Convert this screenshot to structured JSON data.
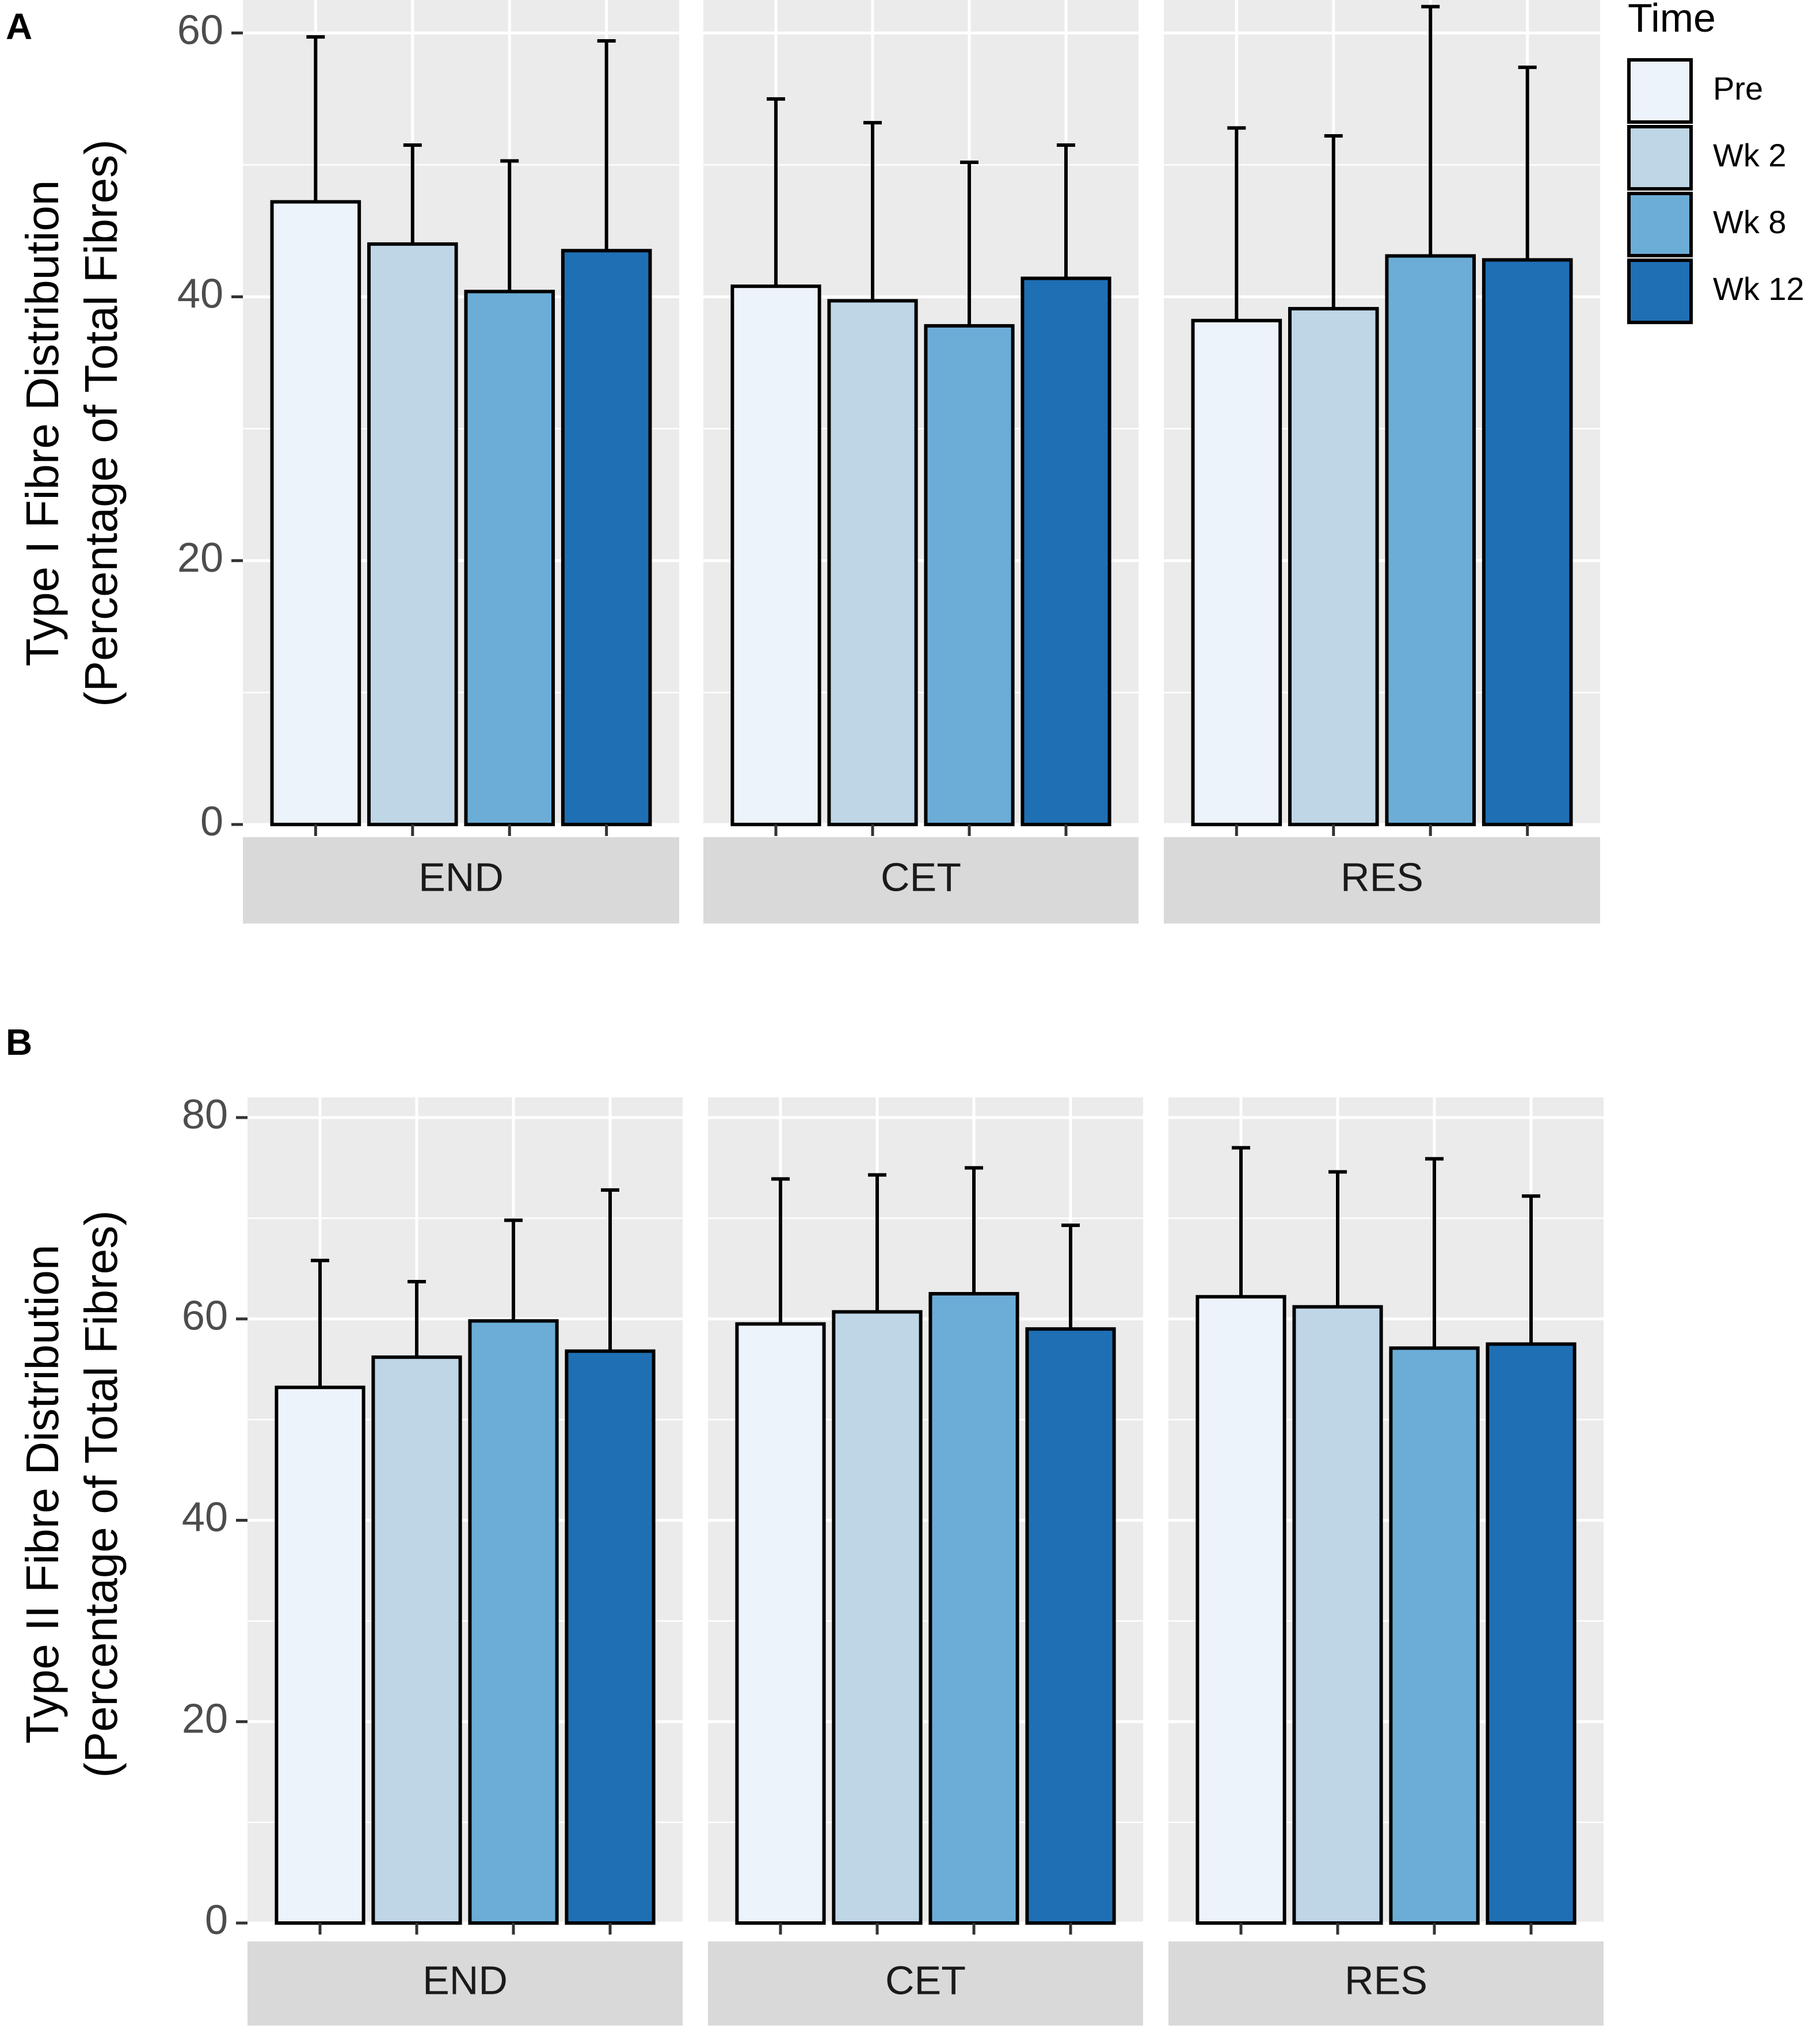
{
  "legend": {
    "title": "Time",
    "items": [
      "Pre",
      "Wk 2",
      "Wk 8",
      "Wk 12"
    ]
  },
  "colors": {
    "series": [
      "#edf3fb",
      "#bfd6e6",
      "#6cadd7",
      "#1f6fb4"
    ],
    "panel_bg": "#ebebeb",
    "grid": "#ffffff",
    "strip_bg": "#d9d9d9",
    "axis_text": "#4d4d4d",
    "strip_text": "#1a1a1a",
    "bar_outline": "#000000"
  },
  "chart_data": [
    {
      "type": "bar",
      "panel_label": "A",
      "ylabel": [
        "Type I Fibre Distribution",
        "(Percentage of Total Fibres)"
      ],
      "ylim": [
        0,
        62.5
      ],
      "yticks": [
        0,
        20,
        40,
        60
      ],
      "facets": [
        "END",
        "CET",
        "RES"
      ],
      "series": [
        {
          "name": "Pre",
          "values": [
            47.2,
            40.8,
            38.2
          ],
          "upper": [
            59.7,
            55.0,
            52.8
          ]
        },
        {
          "name": "Wk 2",
          "values": [
            44.0,
            39.7,
            39.1
          ],
          "upper": [
            51.5,
            53.2,
            52.2
          ]
        },
        {
          "name": "Wk 8",
          "values": [
            40.4,
            37.8,
            43.1
          ],
          "upper": [
            50.3,
            50.2,
            62.0
          ]
        },
        {
          "name": "Wk 12",
          "values": [
            43.5,
            41.4,
            42.8
          ],
          "upper": [
            59.4,
            51.5,
            57.4
          ]
        }
      ]
    },
    {
      "type": "bar",
      "panel_label": "B",
      "ylabel": [
        "Type II Fibre Distribution",
        "(Percentage of Total Fibres)"
      ],
      "ylim": [
        0,
        82
      ],
      "yticks": [
        0,
        20,
        40,
        60,
        80
      ],
      "facets": [
        "END",
        "CET",
        "RES"
      ],
      "series": [
        {
          "name": "Pre",
          "values": [
            53.2,
            59.5,
            62.2
          ],
          "upper": [
            65.8,
            73.9,
            77.0
          ]
        },
        {
          "name": "Wk 2",
          "values": [
            56.2,
            60.7,
            61.2
          ],
          "upper": [
            63.7,
            74.3,
            74.6
          ]
        },
        {
          "name": "Wk 8",
          "values": [
            59.8,
            62.5,
            57.1
          ],
          "upper": [
            69.8,
            75.0,
            75.9
          ]
        },
        {
          "name": "Wk 12",
          "values": [
            56.8,
            59.0,
            57.5
          ],
          "upper": [
            72.8,
            69.3,
            72.2
          ]
        }
      ]
    }
  ]
}
